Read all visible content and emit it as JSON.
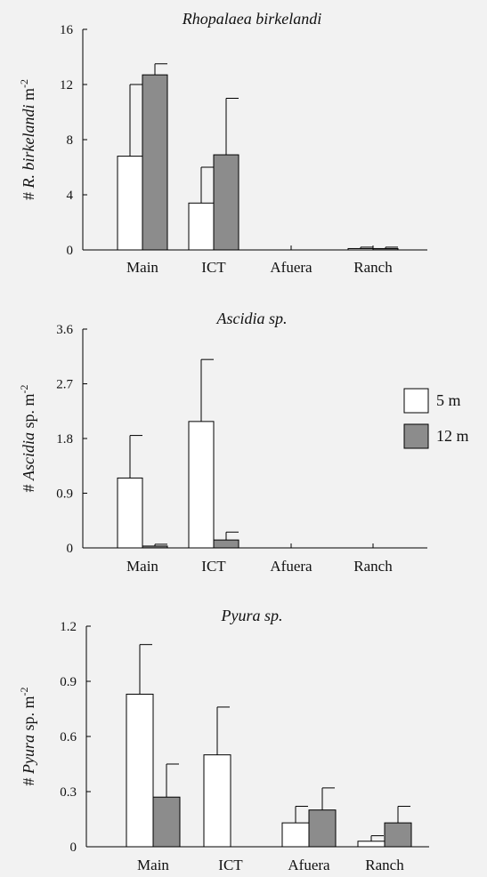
{
  "legend": [
    {
      "label": "5 m",
      "color": "#ffffff"
    },
    {
      "label": "12 m",
      "color": "#8c8c8c"
    }
  ],
  "chart_data": [
    {
      "type": "bar",
      "title": "Rhopalaea birkelandi",
      "ylabel": "# R. birkelandi m-2",
      "categories": [
        "Main",
        "ICT",
        "Afuera",
        "Ranch"
      ],
      "ylim": [
        0,
        16
      ],
      "yticks": [
        "0",
        "4",
        "8",
        "12",
        "16"
      ],
      "series": [
        {
          "name": "5 m",
          "values": [
            6.8,
            3.4,
            0,
            0.1
          ],
          "errors": [
            5.2,
            2.6,
            0,
            0.1
          ]
        },
        {
          "name": "12 m",
          "values": [
            12.7,
            6.9,
            0,
            0.1
          ],
          "errors": [
            0.8,
            4.1,
            0,
            0.1
          ]
        }
      ]
    },
    {
      "type": "bar",
      "title": "Ascidia sp.",
      "ylabel": "# Ascidia sp. m-2",
      "categories": [
        "Main",
        "ICT",
        "Afuera",
        "Ranch"
      ],
      "ylim": [
        0,
        3.6
      ],
      "yticks": [
        "0",
        "0.9",
        "1.8",
        "2.7",
        "3.6"
      ],
      "series": [
        {
          "name": "5 m",
          "values": [
            1.15,
            2.08,
            0,
            0
          ],
          "errors": [
            0.7,
            1.02,
            0,
            0
          ]
        },
        {
          "name": "12 m",
          "values": [
            0.03,
            0.13,
            0,
            0
          ],
          "errors": [
            0.03,
            0.13,
            0,
            0
          ]
        }
      ]
    },
    {
      "type": "bar",
      "title": "Pyura sp.",
      "ylabel": "# Pyura sp. m-2",
      "categories": [
        "Main",
        "ICT",
        "Afuera",
        "Ranch"
      ],
      "ylim": [
        0,
        1.2
      ],
      "yticks": [
        "0",
        "0.3",
        "0.6",
        "0.9",
        "1.2"
      ],
      "series": [
        {
          "name": "5 m",
          "values": [
            0.83,
            0.5,
            0.13,
            0.03
          ],
          "errors": [
            0.27,
            0.26,
            0.09,
            0.03
          ]
        },
        {
          "name": "12 m",
          "values": [
            0.27,
            0,
            0.2,
            0.13
          ],
          "errors": [
            0.18,
            0,
            0.12,
            0.09
          ]
        }
      ]
    }
  ]
}
